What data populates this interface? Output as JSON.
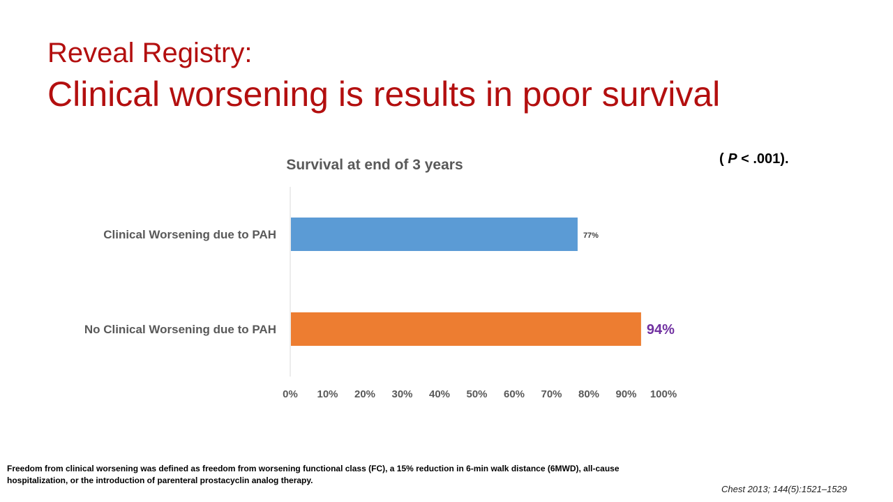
{
  "slide": {
    "title_line1": "Reveal Registry:",
    "title_line2": "Clinical worsening is results in poor survival",
    "p_value_open": "( ",
    "p_value_italic": "P",
    "p_value_rest": " < .001).",
    "footnote": "Freedom from clinical worsening was defined as freedom from worsening functional class (FC), a 15% reduction in 6-min walk distance (6MWD), all-cause hospitalization, or the introduction of parenteral prostacyclin analog therapy.",
    "citation": "Chest 2013; 144(5):1521–1529"
  },
  "colors": {
    "title": "#b30f0f",
    "bar_blue": "#5b9bd5",
    "bar_orange": "#ed7d31",
    "highlight_label": "#7030a0"
  },
  "chart_data": {
    "type": "bar",
    "orientation": "horizontal",
    "title": "Survival at end of 3 years",
    "categories": [
      "Clinical Worsening due to PAH",
      "No Clinical Worsening due to PAH"
    ],
    "values": [
      77,
      94
    ],
    "data_labels": [
      "77%",
      "94%"
    ],
    "bar_colors": [
      "#5b9bd5",
      "#ed7d31"
    ],
    "xlim": [
      0,
      100
    ],
    "x_ticks": [
      0,
      10,
      20,
      30,
      40,
      50,
      60,
      70,
      80,
      90,
      100
    ],
    "x_tick_labels": [
      "0%",
      "10%",
      "20%",
      "30%",
      "40%",
      "50%",
      "60%",
      "70%",
      "80%",
      "90%",
      "100%"
    ],
    "xlabel": "",
    "ylabel": "",
    "grid": false
  }
}
